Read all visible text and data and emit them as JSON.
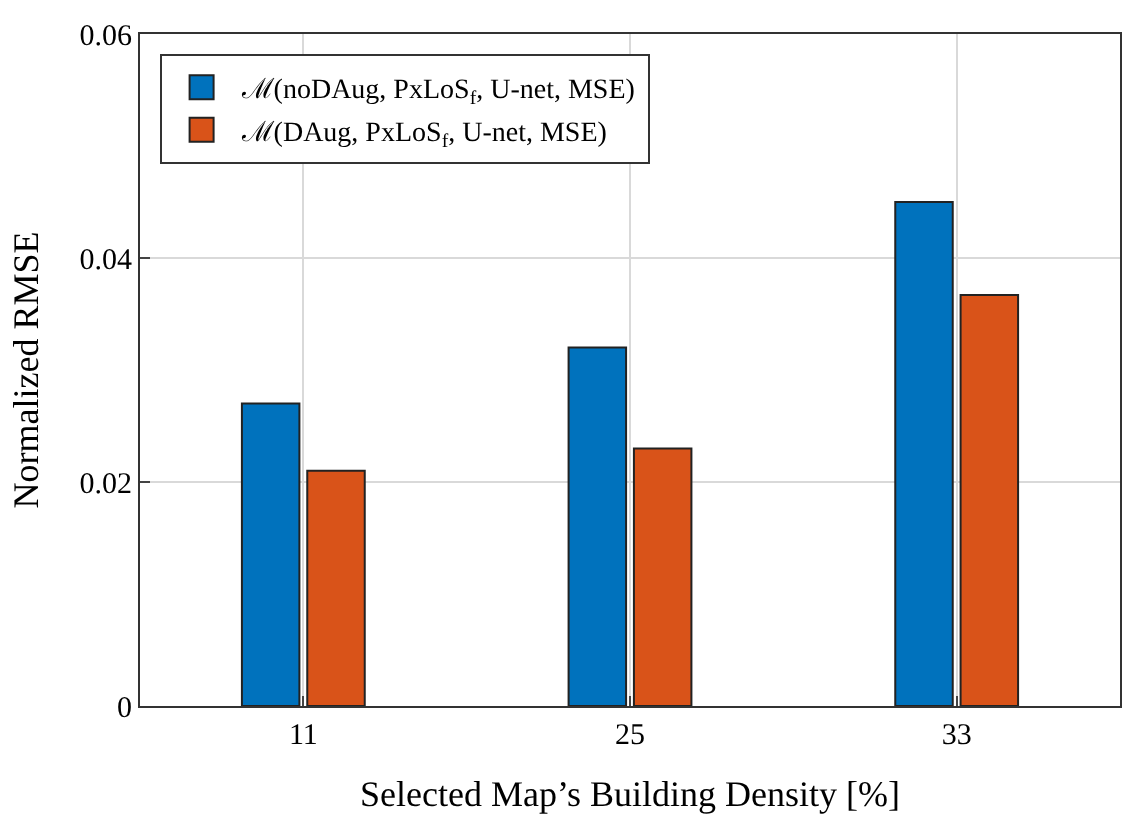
{
  "chart_data": {
    "type": "bar",
    "xlabel": "Selected Map’s Building Density [%]",
    "ylabel": "Normalized RMSE",
    "categories": [
      "11",
      "25",
      "33"
    ],
    "series": [
      {
        "name": "ℳ(noDAug, PxLoS$_{f}$, U-net, MSE)",
        "color": "#0072bd",
        "values": [
          0.027,
          0.032,
          0.045
        ]
      },
      {
        "name": "ℳ(DAug, PxLoS$_{f}$, U-net, MSE)",
        "color": "#d95319",
        "values": [
          0.021,
          0.023,
          0.0367
        ]
      }
    ],
    "ylim": [
      0,
      0.06
    ],
    "yticks": [
      {
        "value": 0,
        "label": "0"
      },
      {
        "value": 0.02,
        "label": "0.02"
      },
      {
        "value": 0.04,
        "label": "0.04"
      },
      {
        "value": 0.06,
        "label": "0.06"
      }
    ],
    "grid": true,
    "legend": "top left"
  }
}
